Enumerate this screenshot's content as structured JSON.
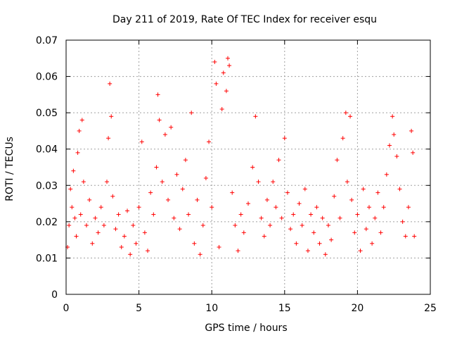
{
  "chart_data": {
    "type": "scatter",
    "title": "Day 211 of 2019, Rate Of TEC Index for receiver esqu",
    "xlabel": "GPS time / hours",
    "ylabel": "ROTI / TECUs",
    "xlim": [
      0,
      25
    ],
    "ylim": [
      0,
      0.07
    ],
    "x_ticks": [
      "0",
      "5",
      "10",
      "15",
      "20",
      "25"
    ],
    "y_ticks": [
      "0",
      "0.01",
      "0.02",
      "0.03",
      "0.04",
      "0.05",
      "0.06",
      "0.07"
    ],
    "grid": true,
    "marker": "+",
    "color": "#ff0000",
    "series": [
      {
        "name": "ROTI",
        "points": [
          [
            0.1,
            0.013
          ],
          [
            0.2,
            0.019
          ],
          [
            0.3,
            0.029
          ],
          [
            0.4,
            0.024
          ],
          [
            0.5,
            0.034
          ],
          [
            0.6,
            0.021
          ],
          [
            0.7,
            0.016
          ],
          [
            0.8,
            0.039
          ],
          [
            0.9,
            0.045
          ],
          [
            1.0,
            0.022
          ],
          [
            1.1,
            0.048
          ],
          [
            1.2,
            0.031
          ],
          [
            1.4,
            0.019
          ],
          [
            1.6,
            0.026
          ],
          [
            1.8,
            0.014
          ],
          [
            2.0,
            0.021
          ],
          [
            2.2,
            0.017
          ],
          [
            2.4,
            0.024
          ],
          [
            2.6,
            0.019
          ],
          [
            2.8,
            0.031
          ],
          [
            2.9,
            0.043
          ],
          [
            3.0,
            0.058
          ],
          [
            3.1,
            0.049
          ],
          [
            3.2,
            0.027
          ],
          [
            3.4,
            0.018
          ],
          [
            3.6,
            0.022
          ],
          [
            3.8,
            0.013
          ],
          [
            4.0,
            0.016
          ],
          [
            4.2,
            0.023
          ],
          [
            4.4,
            0.011
          ],
          [
            4.6,
            0.019
          ],
          [
            4.8,
            0.014
          ],
          [
            5.0,
            0.024
          ],
          [
            5.2,
            0.042
          ],
          [
            5.4,
            0.017
          ],
          [
            5.6,
            0.012
          ],
          [
            5.8,
            0.028
          ],
          [
            6.0,
            0.022
          ],
          [
            6.2,
            0.035
          ],
          [
            6.3,
            0.055
          ],
          [
            6.4,
            0.048
          ],
          [
            6.6,
            0.031
          ],
          [
            6.8,
            0.044
          ],
          [
            7.0,
            0.026
          ],
          [
            7.2,
            0.046
          ],
          [
            7.4,
            0.021
          ],
          [
            7.6,
            0.033
          ],
          [
            7.8,
            0.018
          ],
          [
            8.0,
            0.029
          ],
          [
            8.2,
            0.037
          ],
          [
            8.4,
            0.022
          ],
          [
            8.6,
            0.05
          ],
          [
            8.8,
            0.014
          ],
          [
            9.0,
            0.026
          ],
          [
            9.2,
            0.011
          ],
          [
            9.4,
            0.019
          ],
          [
            9.6,
            0.032
          ],
          [
            9.8,
            0.042
          ],
          [
            10.0,
            0.024
          ],
          [
            10.2,
            0.064
          ],
          [
            10.3,
            0.058
          ],
          [
            10.5,
            0.013
          ],
          [
            10.7,
            0.051
          ],
          [
            10.8,
            0.061
          ],
          [
            11.0,
            0.056
          ],
          [
            11.1,
            0.065
          ],
          [
            11.2,
            0.063
          ],
          [
            11.4,
            0.028
          ],
          [
            11.6,
            0.019
          ],
          [
            11.8,
            0.012
          ],
          [
            12.0,
            0.022
          ],
          [
            12.2,
            0.017
          ],
          [
            12.5,
            0.025
          ],
          [
            12.8,
            0.035
          ],
          [
            13.0,
            0.049
          ],
          [
            13.2,
            0.031
          ],
          [
            13.4,
            0.021
          ],
          [
            13.6,
            0.016
          ],
          [
            13.8,
            0.026
          ],
          [
            14.0,
            0.019
          ],
          [
            14.2,
            0.031
          ],
          [
            14.4,
            0.024
          ],
          [
            14.6,
            0.037
          ],
          [
            14.8,
            0.021
          ],
          [
            15.0,
            0.043
          ],
          [
            15.2,
            0.028
          ],
          [
            15.4,
            0.018
          ],
          [
            15.6,
            0.022
          ],
          [
            15.8,
            0.014
          ],
          [
            16.0,
            0.025
          ],
          [
            16.2,
            0.019
          ],
          [
            16.4,
            0.029
          ],
          [
            16.6,
            0.012
          ],
          [
            16.8,
            0.022
          ],
          [
            17.0,
            0.017
          ],
          [
            17.2,
            0.024
          ],
          [
            17.4,
            0.014
          ],
          [
            17.6,
            0.021
          ],
          [
            17.8,
            0.011
          ],
          [
            18.0,
            0.019
          ],
          [
            18.2,
            0.015
          ],
          [
            18.4,
            0.027
          ],
          [
            18.6,
            0.037
          ],
          [
            18.8,
            0.021
          ],
          [
            19.0,
            0.043
          ],
          [
            19.2,
            0.05
          ],
          [
            19.3,
            0.031
          ],
          [
            19.5,
            0.049
          ],
          [
            19.6,
            0.026
          ],
          [
            19.8,
            0.017
          ],
          [
            20.0,
            0.022
          ],
          [
            20.2,
            0.012
          ],
          [
            20.4,
            0.029
          ],
          [
            20.6,
            0.018
          ],
          [
            20.8,
            0.024
          ],
          [
            21.0,
            0.014
          ],
          [
            21.2,
            0.021
          ],
          [
            21.4,
            0.028
          ],
          [
            21.6,
            0.017
          ],
          [
            21.8,
            0.024
          ],
          [
            22.0,
            0.033
          ],
          [
            22.2,
            0.041
          ],
          [
            22.4,
            0.049
          ],
          [
            22.5,
            0.044
          ],
          [
            22.7,
            0.038
          ],
          [
            22.9,
            0.029
          ],
          [
            23.1,
            0.02
          ],
          [
            23.3,
            0.016
          ],
          [
            23.5,
            0.024
          ],
          [
            23.7,
            0.045
          ],
          [
            23.8,
            0.039
          ],
          [
            23.9,
            0.016
          ]
        ]
      }
    ]
  }
}
